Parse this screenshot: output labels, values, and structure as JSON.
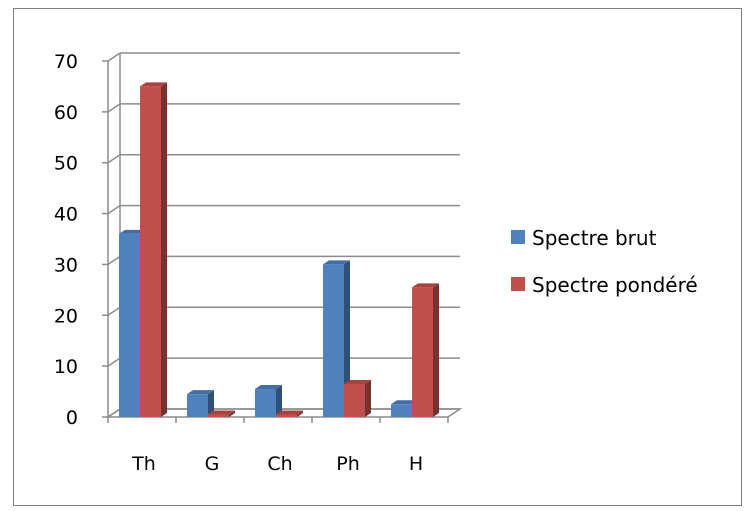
{
  "chart_data": {
    "type": "bar",
    "categories": [
      "Th",
      "G",
      "Ch",
      "Ph",
      "H"
    ],
    "series": [
      {
        "name": "Spectre brut",
        "values": [
          36,
          4.5,
          5.5,
          30,
          2.5
        ],
        "color": "#4f81bd"
      },
      {
        "name": "Spectre pondéré",
        "values": [
          65,
          0.5,
          0.5,
          6.5,
          25.5
        ],
        "color": "#c0504d"
      }
    ],
    "ylim": [
      0,
      70
    ],
    "yticks": [
      0,
      10,
      20,
      30,
      40,
      50,
      60,
      70
    ],
    "grid": true,
    "legend_position": "right",
    "style": "3d-clustered-column"
  }
}
